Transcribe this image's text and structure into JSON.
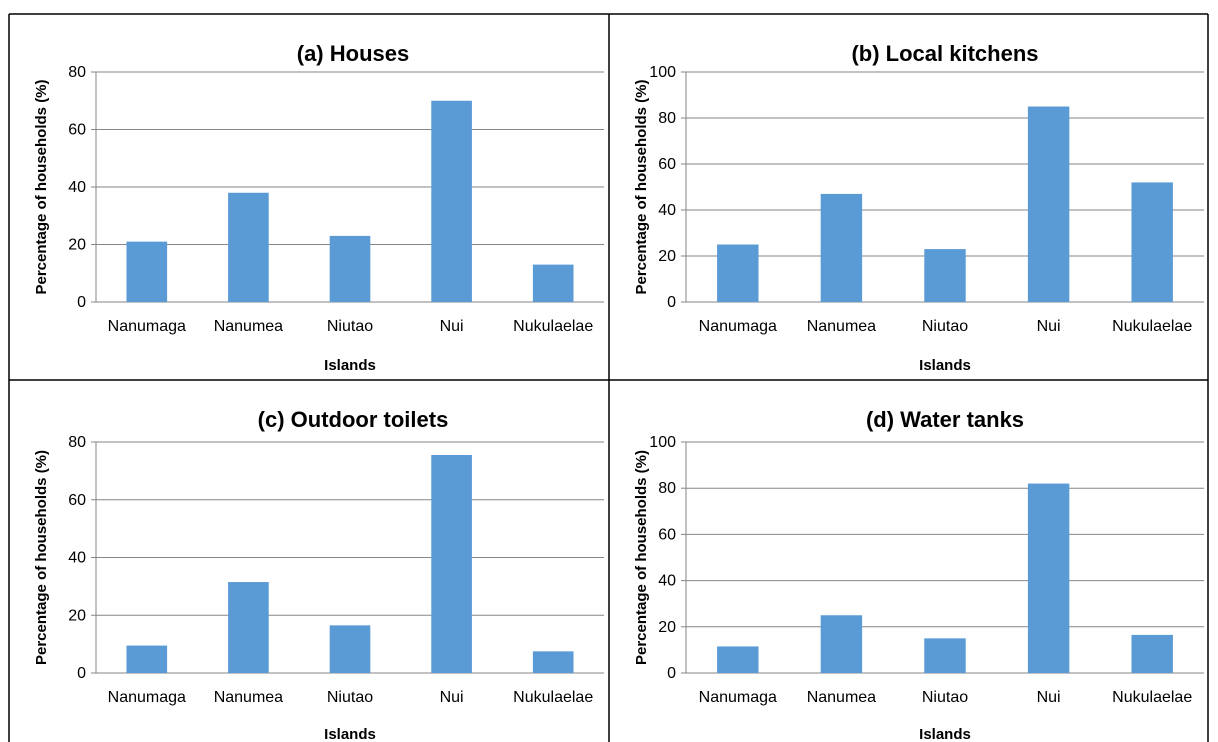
{
  "chart_data": [
    {
      "type": "bar",
      "title": "(a) Houses",
      "xlabel": "Islands",
      "ylabel": "Percentage of households (%)",
      "categories": [
        "Nanumaga",
        "Nanumea",
        "Niutao",
        "Nui",
        "Nukulaelae"
      ],
      "values": [
        21,
        38,
        23,
        70,
        13
      ],
      "ylim": [
        0,
        80
      ],
      "yticks": [
        0,
        20,
        40,
        60,
        80
      ],
      "grid": true,
      "color": "#5b9bd5"
    },
    {
      "type": "bar",
      "title": "(b) Local kitchens",
      "xlabel": "Islands",
      "ylabel": "Percentage of households (%)",
      "categories": [
        "Nanumaga",
        "Nanumea",
        "Niutao",
        "Nui",
        "Nukulaelae"
      ],
      "values": [
        25,
        47,
        23,
        85,
        52
      ],
      "ylim": [
        0,
        100
      ],
      "yticks": [
        0,
        20,
        40,
        60,
        80,
        100
      ],
      "grid": true,
      "color": "#5b9bd5"
    },
    {
      "type": "bar",
      "title": "(c) Outdoor toilets",
      "xlabel": "Islands",
      "ylabel": "Percentage of households (%)",
      "categories": [
        "Nanumaga",
        "Nanumea",
        "Niutao",
        "Nui",
        "Nukulaelae"
      ],
      "values": [
        9.5,
        31.5,
        16.5,
        75.5,
        7.5
      ],
      "ylim": [
        0,
        80
      ],
      "yticks": [
        0,
        20,
        40,
        60,
        80
      ],
      "grid": true,
      "color": "#5b9bd5"
    },
    {
      "type": "bar",
      "title": "(d) Water tanks",
      "xlabel": "Islands",
      "ylabel": "Percentage of households (%)",
      "categories": [
        "Nanumaga",
        "Nanumea",
        "Niutao",
        "Nui",
        "Nukulaelae"
      ],
      "values": [
        11.5,
        25,
        15,
        82,
        16.5
      ],
      "ylim": [
        0,
        100
      ],
      "yticks": [
        0,
        20,
        40,
        60,
        80,
        100
      ],
      "grid": true,
      "color": "#5b9bd5"
    }
  ]
}
